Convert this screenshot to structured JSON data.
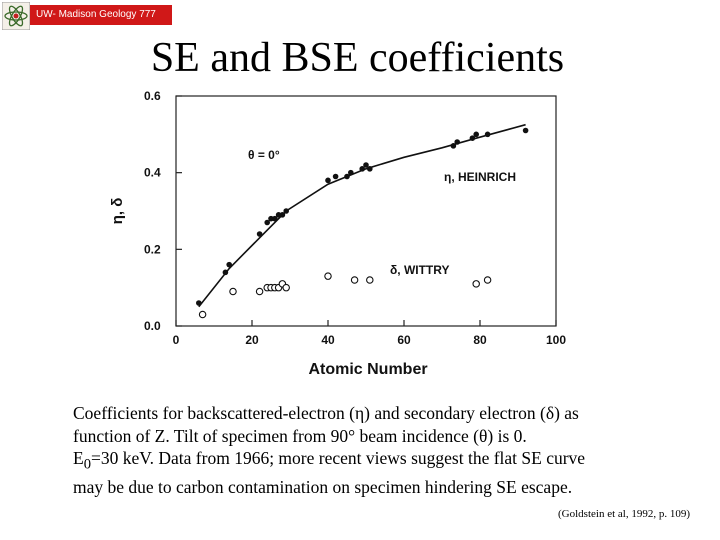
{
  "header": {
    "banner_text": "UW- Madison Geology  777",
    "logo_icon": "atom-logo-icon"
  },
  "slide": {
    "title": "SE and BSE coefficients"
  },
  "chart_data": {
    "type": "scatter",
    "title": "",
    "xlabel": "Atomic Number",
    "ylabel": "η, δ",
    "xlim": [
      0,
      100
    ],
    "ylim": [
      0,
      0.6
    ],
    "x_ticks": [
      "0",
      "20",
      "40",
      "60",
      "80",
      "100"
    ],
    "y_ticks": [
      "0.0",
      "0.2",
      "0.4",
      "0.6"
    ],
    "grid": false,
    "annotations": {
      "angle": "θ  = 0°",
      "heinrich": "η, HEINRICH",
      "wittry": "δ, WITTRY"
    },
    "series": [
      {
        "name": "η, HEINRICH",
        "marker": "filled-circle",
        "x": [
          6,
          13,
          14,
          22,
          24,
          25,
          26,
          27,
          28,
          29,
          40,
          42,
          45,
          46,
          49,
          50,
          51,
          73,
          74,
          78,
          79,
          82,
          92
        ],
        "y": [
          0.06,
          0.14,
          0.16,
          0.24,
          0.27,
          0.28,
          0.28,
          0.29,
          0.29,
          0.3,
          0.38,
          0.39,
          0.39,
          0.4,
          0.41,
          0.42,
          0.41,
          0.47,
          0.48,
          0.49,
          0.5,
          0.5,
          0.51
        ]
      },
      {
        "name": "δ, WITTRY",
        "marker": "open-circle",
        "x": [
          7,
          15,
          22,
          24,
          25,
          26,
          27,
          28,
          29,
          40,
          47,
          51,
          79,
          82
        ],
        "y": [
          0.03,
          0.09,
          0.09,
          0.1,
          0.1,
          0.1,
          0.1,
          0.11,
          0.1,
          0.13,
          0.12,
          0.12,
          0.11,
          0.12
        ]
      },
      {
        "name": "",
        "marker": "line",
        "x": [
          6,
          14,
          22,
          29,
          40,
          50,
          60,
          70,
          79,
          92
        ],
        "y": [
          0.05,
          0.15,
          0.23,
          0.3,
          0.37,
          0.41,
          0.44,
          0.465,
          0.49,
          0.525
        ]
      }
    ]
  },
  "caption": {
    "line1": "Coefficients for backscattered-electron (η) and secondary electron (δ) as",
    "line2": "function of Z. Tilt of specimen from 90° beam incidence (θ) is 0.",
    "line3_pre": "E",
    "line3_sub": "0",
    "line3_post": "=30 keV. Data from 1966; more recent views suggest the flat SE curve",
    "line4": "may be due to carbon contamination on specimen hindering SE escape."
  },
  "citation": "(Goldstein et al, 1992, p. 109)"
}
